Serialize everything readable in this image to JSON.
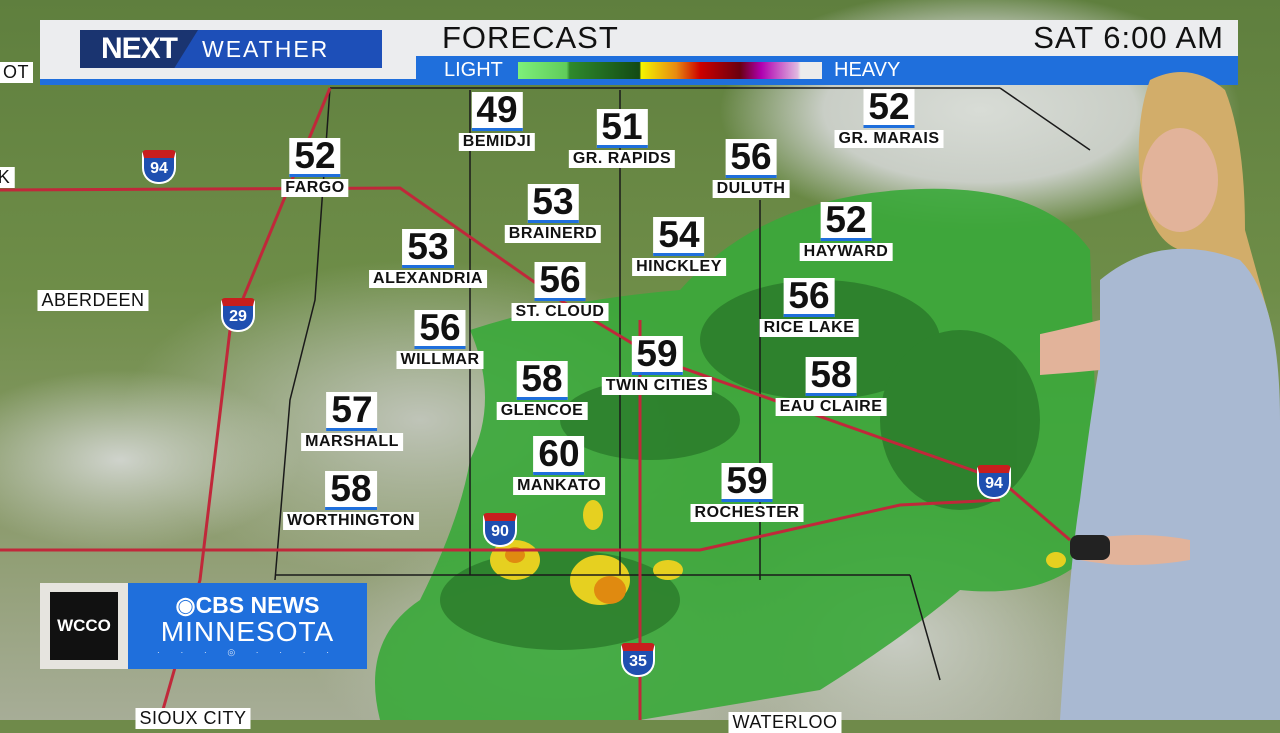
{
  "header": {
    "brand_next": "NEXT",
    "brand_weather": "WEATHER",
    "title": "FORECAST",
    "time": "SAT  6:00 AM"
  },
  "legend": {
    "light": "LIGHT",
    "heavy": "HEAVY"
  },
  "cities": [
    {
      "name": "BEMIDJI",
      "temp": "49"
    },
    {
      "name": "GR. RAPIDS",
      "temp": "51"
    },
    {
      "name": "GR. MARAIS",
      "temp": "52"
    },
    {
      "name": "FARGO",
      "temp": "52"
    },
    {
      "name": "DULUTH",
      "temp": "56"
    },
    {
      "name": "BRAINERD",
      "temp": "53"
    },
    {
      "name": "HINCKLEY",
      "temp": "54"
    },
    {
      "name": "HAYWARD",
      "temp": "52"
    },
    {
      "name": "ALEXANDRIA",
      "temp": "53"
    },
    {
      "name": "ST. CLOUD",
      "temp": "56"
    },
    {
      "name": "RICE LAKE",
      "temp": "56"
    },
    {
      "name": "WILLMAR",
      "temp": "56"
    },
    {
      "name": "TWIN CITIES",
      "temp": "59"
    },
    {
      "name": "GLENCOE",
      "temp": "58"
    },
    {
      "name": "EAU CLAIRE",
      "temp": "58"
    },
    {
      "name": "MARSHALL",
      "temp": "57"
    },
    {
      "name": "MANKATO",
      "temp": "60"
    },
    {
      "name": "ROCHESTER",
      "temp": "59"
    },
    {
      "name": "WORTHINGTON",
      "temp": "58"
    }
  ],
  "labels": [
    "ABERDEEN",
    "SIOUX CITY",
    "WATERLOO",
    "OT",
    "K"
  ],
  "interstates": [
    "94",
    "29",
    "90",
    "35",
    "94"
  ],
  "station": {
    "call": "WCCO",
    "network": "CBS NEWS",
    "region": "MINNESOTA"
  }
}
